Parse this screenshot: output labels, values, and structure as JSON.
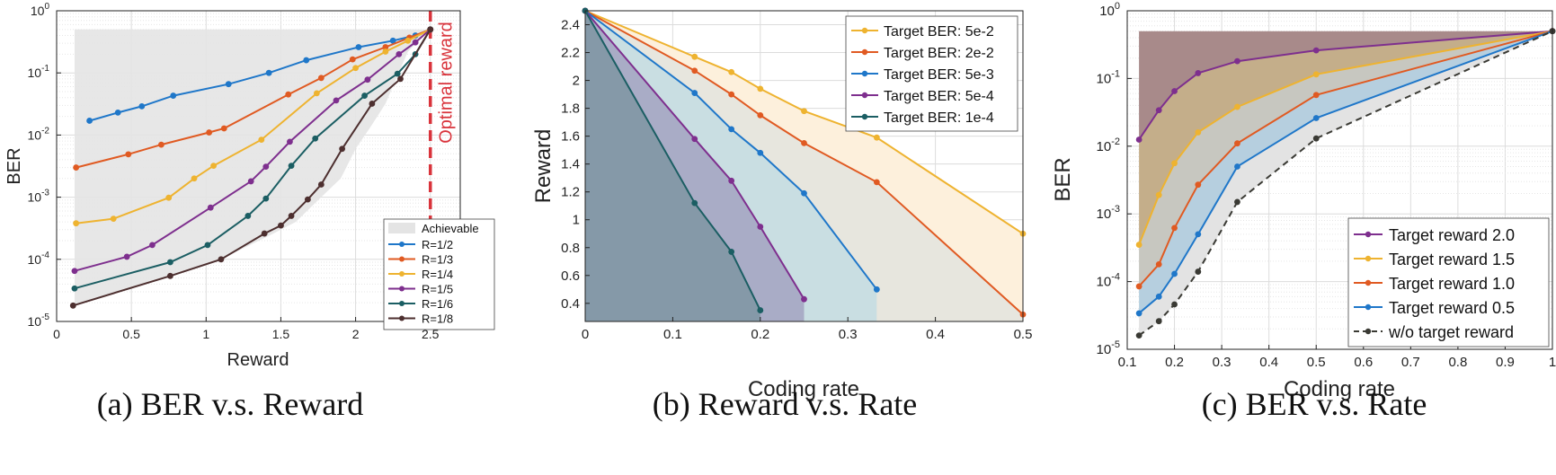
{
  "palette": {
    "blue": "#1f77c9",
    "orange": "#e05a22",
    "yellow": "#eeb330",
    "purple": "#7e2f8e",
    "teal": "#1b5e63",
    "brown": "#4d2f2f",
    "dark": "#3a3a34",
    "optimal": "#d9333b",
    "achievable_fill": "#e4e4e4"
  },
  "chart_data": [
    {
      "type": "line",
      "caption": "(a) BER v.s. Reward",
      "xlabel": "Reward",
      "ylabel": "BER",
      "xlim": [
        0,
        2.7
      ],
      "ylim": [
        1e-05,
        1
      ],
      "yscale": "log",
      "grid": true,
      "legend_position": "bottom-right",
      "x_ticks": [
        0,
        0.5,
        1,
        1.5,
        2,
        2.5
      ],
      "x_tick_labels": [
        "0",
        "0.5",
        "1",
        "1.5",
        "2",
        "2.5"
      ],
      "y_tick_exponents": [
        -5,
        -4,
        -3,
        -2,
        -1,
        0
      ],
      "y_tick_base": "10",
      "achievable_label": "Achievable",
      "achievable_region": {
        "x": [
          0.12,
          0.12,
          2.5,
          2.5,
          2.35,
          2.27,
          2.2,
          2.1,
          2.0,
          1.9,
          1.75,
          1.6,
          1.45,
          1.1,
          0.75,
          0.12
        ],
        "y": [
          1.8e-05,
          0.5,
          0.5,
          0.5,
          0.22,
          0.08,
          0.032,
          0.0135,
          0.006,
          0.002,
          0.0009,
          0.0004,
          0.00026,
          0.0001,
          5.5e-05,
          1.8e-05
        ]
      },
      "optimal_label": "Optimal reward",
      "optimal_x": 2.5,
      "series": [
        {
          "name": "R=1/2",
          "color_key": "blue",
          "x": [
            0.22,
            0.41,
            0.57,
            0.78,
            1.15,
            1.42,
            1.67,
            2.02,
            2.25,
            2.4,
            2.5
          ],
          "y": [
            0.017,
            0.023,
            0.029,
            0.043,
            0.066,
            0.1,
            0.16,
            0.26,
            0.33,
            0.4,
            0.5
          ]
        },
        {
          "name": "R=1/3",
          "color_key": "orange",
          "x": [
            0.13,
            0.48,
            0.7,
            1.02,
            1.12,
            1.55,
            1.77,
            1.98,
            2.2,
            2.36,
            2.5
          ],
          "y": [
            0.003,
            0.0049,
            0.007,
            0.011,
            0.0128,
            0.045,
            0.083,
            0.165,
            0.26,
            0.37,
            0.5
          ]
        },
        {
          "name": "R=1/4",
          "color_key": "yellow",
          "x": [
            0.13,
            0.38,
            0.75,
            0.92,
            1.05,
            1.37,
            1.74,
            2.0,
            2.2,
            2.35,
            2.5
          ],
          "y": [
            0.00038,
            0.00045,
            0.00098,
            0.002,
            0.0032,
            0.0084,
            0.047,
            0.12,
            0.22,
            0.33,
            0.5
          ]
        },
        {
          "name": "R=1/5",
          "color_key": "purple",
          "x": [
            0.12,
            0.47,
            0.64,
            1.03,
            1.3,
            1.4,
            1.56,
            1.87,
            2.08,
            2.29,
            2.4,
            2.5
          ],
          "y": [
            6.5e-05,
            0.00011,
            0.00017,
            0.00068,
            0.0018,
            0.0031,
            0.0078,
            0.036,
            0.078,
            0.2,
            0.31,
            0.5
          ]
        },
        {
          "name": "R=1/6",
          "color_key": "teal",
          "x": [
            0.12,
            0.76,
            1.01,
            1.28,
            1.4,
            1.57,
            1.73,
            2.06,
            2.28,
            2.4,
            2.5
          ],
          "y": [
            3.4e-05,
            9e-05,
            0.00017,
            0.0005,
            0.00095,
            0.0032,
            0.0088,
            0.043,
            0.097,
            0.2,
            0.5
          ]
        },
        {
          "name": "R=1/8",
          "color_key": "brown",
          "x": [
            0.11,
            0.76,
            1.1,
            1.39,
            1.5,
            1.57,
            1.68,
            1.77,
            1.91,
            2.11,
            2.3,
            2.5
          ],
          "y": [
            1.8e-05,
            5.4e-05,
            0.0001,
            0.00026,
            0.00035,
            0.0005,
            0.00092,
            0.0016,
            0.006,
            0.032,
            0.08,
            0.5
          ]
        }
      ]
    },
    {
      "type": "area",
      "caption": "(b) Reward v.s. Rate",
      "xlabel": "Coding rate",
      "ylabel": "Reward",
      "xlim": [
        0,
        0.5
      ],
      "ylim": [
        0.27,
        2.5
      ],
      "grid": true,
      "legend_position": "top-right",
      "x_ticks": [
        0,
        0.1,
        0.2,
        0.3,
        0.4,
        0.5
      ],
      "x_tick_labels": [
        "0",
        "0.1",
        "0.2",
        "0.3",
        "0.4",
        "0.5"
      ],
      "y_ticks": [
        0.4,
        0.6,
        0.8,
        1,
        1.2,
        1.4,
        1.6,
        1.8,
        2,
        2.2,
        2.4
      ],
      "y_tick_labels": [
        "0.4",
        "0.6",
        "0.8",
        "1",
        "1.2",
        "1.4",
        "1.6",
        "1.8",
        "2",
        "2.2",
        "2.4"
      ],
      "series": [
        {
          "name": "Target BER: 5e-2",
          "color_key": "yellow",
          "fill": "#fdf0dc",
          "x": [
            0,
            0.125,
            0.167,
            0.2,
            0.25,
            0.333,
            0.5
          ],
          "y": [
            2.5,
            2.17,
            2.06,
            1.94,
            1.78,
            1.59,
            0.9
          ]
        },
        {
          "name": "Target BER: 2e-2",
          "color_key": "orange",
          "fill": "#e7e6de",
          "x": [
            0,
            0.125,
            0.167,
            0.2,
            0.25,
            0.333,
            0.5
          ],
          "y": [
            2.5,
            2.07,
            1.9,
            1.75,
            1.55,
            1.27,
            0.32
          ]
        },
        {
          "name": "Target BER: 5e-3",
          "color_key": "blue",
          "fill": "#c9dee2",
          "x": [
            0,
            0.125,
            0.167,
            0.2,
            0.25,
            0.333
          ],
          "y": [
            2.5,
            1.91,
            1.65,
            1.48,
            1.19,
            0.5
          ]
        },
        {
          "name": "Target BER: 5e-4",
          "color_key": "purple",
          "fill": "#a9acc6",
          "x": [
            0,
            0.125,
            0.167,
            0.2,
            0.25
          ],
          "y": [
            2.5,
            1.58,
            1.28,
            0.95,
            0.43
          ]
        },
        {
          "name": "Target BER: 1e-4",
          "color_key": "teal",
          "fill": "#8599a8",
          "x": [
            0,
            0.125,
            0.167,
            0.2
          ],
          "y": [
            2.5,
            1.12,
            0.77,
            0.35
          ]
        }
      ]
    },
    {
      "type": "area",
      "caption": "(c) BER v.s. Rate",
      "xlabel": "Coding rate",
      "ylabel": "BER",
      "xlim": [
        0.1,
        1
      ],
      "ylim": [
        1e-05,
        1
      ],
      "yscale": "log",
      "grid": true,
      "legend_position": "bottom-right",
      "x_ticks": [
        0.1,
        0.2,
        0.3,
        0.4,
        0.5,
        0.6,
        0.7,
        0.8,
        0.9,
        1
      ],
      "x_tick_labels": [
        "0.1",
        "0.2",
        "0.3",
        "0.4",
        "0.5",
        "0.6",
        "0.7",
        "0.8",
        "0.9",
        "1"
      ],
      "y_tick_exponents": [
        -5,
        -4,
        -3,
        -2,
        -1,
        0
      ],
      "y_tick_base": "10",
      "top_bound": 0.5,
      "series": [
        {
          "name": "Target reward 2.0",
          "color_key": "purple",
          "fill": "#a88a8a",
          "dashed": false,
          "x": [
            0.125,
            0.167,
            0.2,
            0.25,
            0.333,
            0.5,
            1
          ],
          "y": [
            0.0125,
            0.034,
            0.065,
            0.12,
            0.18,
            0.26,
            0.5
          ]
        },
        {
          "name": "Target reward 1.5",
          "color_key": "yellow",
          "fill": "#c4ae8a",
          "dashed": false,
          "x": [
            0.125,
            0.167,
            0.2,
            0.25,
            0.333,
            0.5,
            1
          ],
          "y": [
            0.00035,
            0.0019,
            0.0056,
            0.016,
            0.038,
            0.115,
            0.5
          ]
        },
        {
          "name": "Target reward 1.0",
          "color_key": "orange",
          "fill": "#c7c7c0",
          "dashed": false,
          "x": [
            0.125,
            0.167,
            0.2,
            0.25,
            0.333,
            0.5,
            1
          ],
          "y": [
            8.5e-05,
            0.00018,
            0.00062,
            0.0027,
            0.011,
            0.057,
            0.5
          ]
        },
        {
          "name": "Target reward 0.5",
          "color_key": "blue",
          "fill": "#b6cfdf",
          "dashed": false,
          "x": [
            0.125,
            0.167,
            0.2,
            0.25,
            0.333,
            0.5,
            1
          ],
          "y": [
            3.4e-05,
            6e-05,
            0.00013,
            0.0005,
            0.005,
            0.026,
            0.5
          ]
        },
        {
          "name": "w/o target reward",
          "color_key": "dark",
          "fill": "#e3e3e3",
          "dashed": true,
          "x": [
            0.125,
            0.167,
            0.2,
            0.25,
            0.333,
            0.5,
            1
          ],
          "y": [
            1.6e-05,
            2.6e-05,
            4.6e-05,
            0.00014,
            0.0015,
            0.013,
            0.5
          ]
        }
      ]
    }
  ]
}
